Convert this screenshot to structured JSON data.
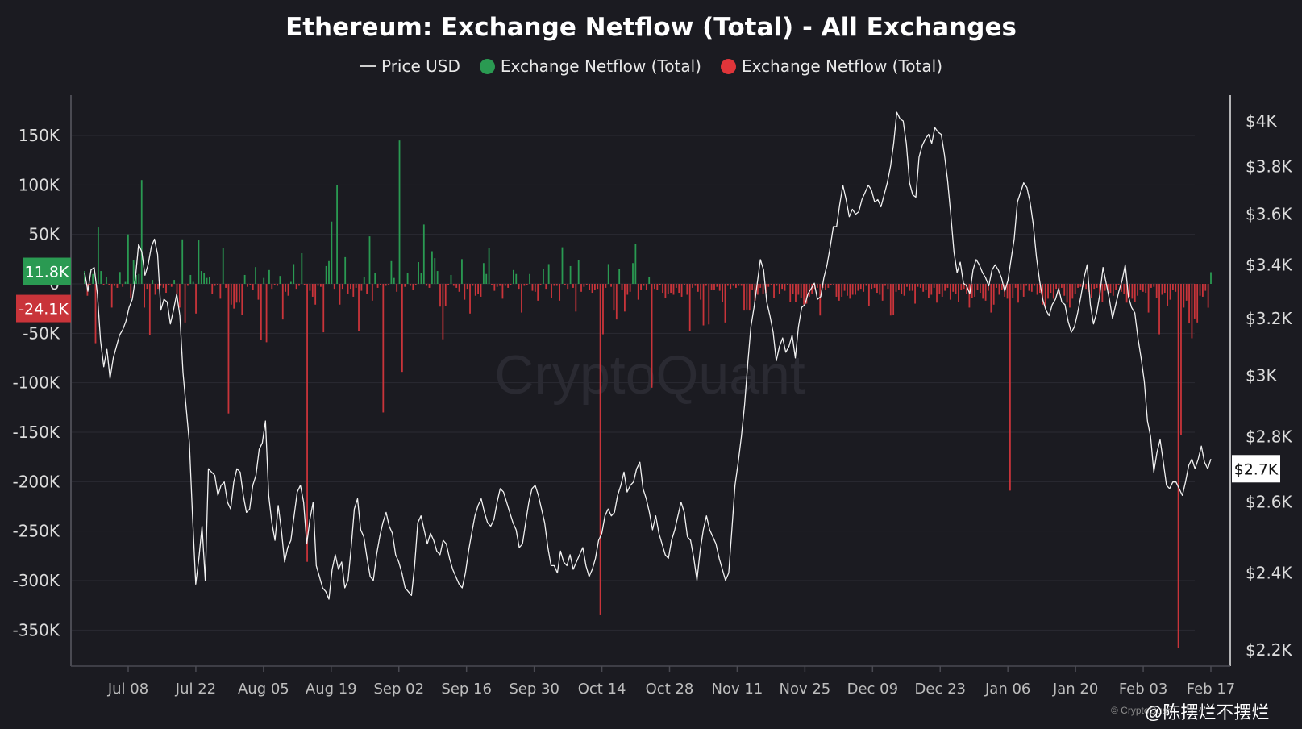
{
  "title": "Ethereum: Exchange Netflow (Total) - All Exchanges",
  "legend": [
    {
      "label": "Price USD",
      "type": "line",
      "color": "#e6e6e6"
    },
    {
      "label": "Exchange Netflow (Total)",
      "type": "dot",
      "color": "#2a9a52"
    },
    {
      "label": "Exchange Netflow (Total)",
      "type": "dot",
      "color": "#e0353a"
    }
  ],
  "watermark_center": "CryptoQuant",
  "credit": "© CryptoQuant",
  "footer_watermark": "@陈摆烂不摆烂",
  "colors": {
    "background": "#1b1b21",
    "inflow": "#2a9a52",
    "outflow": "#c9343a",
    "price": "#f2f2f2",
    "grid": "#2b2b33",
    "axis": "#4a4a52",
    "tick_text": "#dcdcdc"
  },
  "chart_data": {
    "type": "bar+line",
    "x_ticks": [
      "Jul 08",
      "Jul 22",
      "Aug 05",
      "Aug 19",
      "Sep 02",
      "Sep 16",
      "Sep 30",
      "Oct 14",
      "Oct 28",
      "Nov 11",
      "Nov 25",
      "Dec 09",
      "Dec 23",
      "Jan 06",
      "Jan 20",
      "Feb 03",
      "Feb 17"
    ],
    "x_range": [
      "Jun 27",
      "Feb 18"
    ],
    "y_left": {
      "ticks": [
        "150K",
        "100K",
        "50K",
        "0",
        "-50K",
        "-100K",
        "-150K",
        "-200K",
        "-250K",
        "-300K",
        "-350K"
      ],
      "range": [
        -392000,
        192000
      ]
    },
    "y_right": {
      "ticks": [
        "$4K",
        "$3.8K",
        "$3.6K",
        "$3.4K",
        "$3.2K",
        "$3K",
        "$2.8K",
        "$2.6K",
        "$2.4K",
        "$2.2K"
      ],
      "scale": "log",
      "range": [
        2170,
        4120
      ]
    },
    "current_labels": {
      "inflow": "11.8K",
      "outflow": "-24.1K",
      "price": "$2.7K"
    },
    "netflow_series": {
      "name": "Exchange Netflow (Total)",
      "start_date": "2024-06-29",
      "values": [
        13000,
        -12000,
        -1000,
        10000,
        -60000,
        57000,
        13000,
        -1000,
        7000,
        -1000,
        -24000,
        -2000,
        -4000,
        12000,
        -3000,
        2000,
        50000,
        -14000,
        24000,
        9000,
        10000,
        105000,
        -24000,
        -5000,
        -52000,
        4000,
        -11000,
        -5000,
        -2000,
        -4000,
        -9000,
        -1000,
        -3000,
        4000,
        -10000,
        -24000,
        45000,
        -39000,
        -2000,
        9000,
        2000,
        -30000,
        44000,
        13000,
        11000,
        6000,
        7000,
        -10000,
        -2000,
        -1000,
        -15000,
        36000,
        -4000,
        -131000,
        -21000,
        -25000,
        -19000,
        -19000,
        -31000,
        9000,
        -3000,
        -1000,
        -6000,
        17000,
        -16000,
        -57000,
        6000,
        -59000,
        14000,
        -5000,
        -1000,
        -2000,
        8000,
        -36000,
        -8000,
        -12000,
        2000,
        20000,
        -5000,
        -2000,
        31000,
        -1000,
        -281000,
        -7000,
        -13000,
        -21000,
        -2000,
        -3000,
        -49000,
        18000,
        23000,
        63000,
        -5000,
        100000,
        -21000,
        -5000,
        27000,
        -10000,
        -5000,
        -13000,
        -4000,
        -48000,
        -7000,
        7000,
        -10000,
        48000,
        -17000,
        11000,
        -4000,
        -1000,
        -130000,
        -2000,
        -1000,
        23000,
        6000,
        -8000,
        145000,
        -89000,
        -3000,
        11000,
        -2000,
        -6000,
        -1000,
        22000,
        11000,
        60000,
        -2000,
        -4000,
        33000,
        26000,
        13000,
        -23000,
        -56000,
        -22000,
        -1000,
        9000,
        -2000,
        -4000,
        -8000,
        25000,
        -16000,
        -5000,
        -30000,
        -2000,
        -12000,
        -10000,
        -13000,
        21000,
        10000,
        36000,
        -1000,
        -7000,
        -3000,
        -2000,
        -15000,
        -2000,
        -4000,
        -1000,
        14000,
        10000,
        -5000,
        -29000,
        -2000,
        -1000,
        10000,
        -7000,
        -8000,
        -17000,
        -1000,
        15000,
        -5000,
        20000,
        -14000,
        -2000,
        -2000,
        -17000,
        37000,
        -1000,
        -5000,
        18000,
        -4000,
        -28000,
        24000,
        -8000,
        -3000,
        -1000,
        -6000,
        -9000,
        -6000,
        -5000,
        -335000,
        -51000,
        -4000,
        20000,
        -3000,
        -27000,
        -36000,
        15000,
        -6000,
        -28000,
        -11000,
        -8000,
        21000,
        40000,
        -16000,
        -6000,
        -2000,
        -6000,
        7000,
        -105000,
        -5000,
        -6000,
        -1000,
        -9000,
        -14000,
        -10000,
        -9000,
        -11000,
        -4000,
        -9000,
        -13000,
        -1000,
        -11000,
        -48000,
        -4000,
        -2000,
        -8000,
        -16000,
        -42000,
        -2000,
        -41000,
        -6000,
        -6000,
        -3000,
        -7000,
        -18000,
        -39000,
        -2000,
        -5000,
        -2000,
        -4000,
        -2000,
        -2000,
        -27000,
        -26000,
        -27000,
        -6000,
        -17000,
        -11000,
        -4000,
        -10000,
        -9000,
        -3000,
        -1000,
        -14000,
        -2000,
        -10000,
        -5000,
        -7000,
        -1000,
        -18000,
        -10000,
        -18000,
        -11000,
        -14000,
        -21000,
        -20000,
        -13000,
        -10000,
        -5000,
        -4000,
        -32000,
        -4000,
        -6000,
        -4000,
        -1000,
        -1000,
        -13000,
        -17000,
        -13000,
        -7000,
        -12000,
        -15000,
        -11000,
        -11000,
        -7000,
        -5000,
        -8000,
        -2000,
        -22000,
        -5000,
        -4000,
        -9000,
        -11000,
        -17000,
        -2000,
        -5000,
        -32000,
        -31000,
        -8000,
        -6000,
        -10000,
        -12000,
        -3000,
        -7000,
        -7000,
        -20000,
        -3000,
        -4000,
        -8000,
        -6000,
        -14000,
        -11000,
        -4000,
        -19000,
        -10000,
        -13000,
        -7000,
        -4000,
        -16000,
        -8000,
        -10000,
        -18000,
        -6000,
        -5000,
        -10000,
        -24000,
        -14000,
        -13000,
        -6000,
        -9000,
        -15000,
        -17000,
        -7000,
        -29000,
        -21000,
        -4000,
        -11000,
        -6000,
        -13000,
        -15000,
        -209000,
        -14000,
        -4000,
        -19000,
        -6000,
        -13000,
        -2000,
        -7000,
        -8000,
        -2000,
        -11000,
        -9000,
        -21000,
        -24000,
        -15000,
        -9000,
        -15000,
        -5000,
        -11000,
        -4000,
        -12000,
        -19000,
        -24000,
        -15000,
        -10000,
        -4000,
        -3000,
        -3000,
        -5000,
        -8000,
        -14000,
        -5000,
        -4000,
        -10000,
        -18000,
        -7000,
        -6000,
        -9000,
        -12000,
        -6000,
        -1000,
        -8000,
        -10000,
        -19000,
        -13000,
        -15000,
        -18000,
        -12000,
        -6000,
        -8000,
        -9000,
        -29000,
        -4000,
        -3000,
        -14000,
        -51000,
        -11000,
        -9000,
        -22000,
        -16000,
        -6000,
        -8000,
        -368000,
        -153000,
        -24000,
        -17000,
        -40000,
        -55000,
        -35000,
        -39000,
        -12000,
        -13000,
        -7000,
        -24100,
        11800
      ]
    },
    "price_series": {
      "name": "Price USD",
      "start_date": "2024-06-29",
      "values": [
        3370,
        3300,
        3380,
        3390,
        3290,
        3120,
        3030,
        3090,
        2990,
        3060,
        3100,
        3140,
        3160,
        3190,
        3240,
        3270,
        3350,
        3480,
        3450,
        3360,
        3400,
        3470,
        3500,
        3440,
        3230,
        3270,
        3260,
        3180,
        3230,
        3290,
        3210,
        3010,
        2890,
        2780,
        2560,
        2370,
        2440,
        2530,
        2380,
        2700,
        2690,
        2680,
        2620,
        2650,
        2660,
        2600,
        2580,
        2660,
        2700,
        2690,
        2620,
        2570,
        2580,
        2650,
        2680,
        2760,
        2780,
        2850,
        2620,
        2540,
        2490,
        2590,
        2520,
        2430,
        2470,
        2490,
        2560,
        2630,
        2650,
        2600,
        2480,
        2550,
        2600,
        2420,
        2390,
        2360,
        2350,
        2330,
        2410,
        2450,
        2410,
        2430,
        2360,
        2380,
        2470,
        2580,
        2610,
        2520,
        2500,
        2440,
        2390,
        2380,
        2450,
        2500,
        2540,
        2570,
        2530,
        2510,
        2450,
        2430,
        2400,
        2360,
        2350,
        2340,
        2420,
        2540,
        2560,
        2520,
        2480,
        2510,
        2490,
        2460,
        2450,
        2490,
        2480,
        2440,
        2410,
        2390,
        2370,
        2360,
        2400,
        2460,
        2510,
        2560,
        2590,
        2610,
        2570,
        2540,
        2530,
        2550,
        2600,
        2640,
        2630,
        2600,
        2570,
        2540,
        2520,
        2470,
        2480,
        2540,
        2600,
        2640,
        2650,
        2620,
        2580,
        2540,
        2470,
        2420,
        2420,
        2400,
        2460,
        2430,
        2420,
        2450,
        2410,
        2430,
        2450,
        2470,
        2420,
        2390,
        2410,
        2440,
        2490,
        2510,
        2560,
        2580,
        2560,
        2570,
        2620,
        2650,
        2690,
        2630,
        2650,
        2660,
        2700,
        2720,
        2640,
        2610,
        2570,
        2520,
        2560,
        2510,
        2480,
        2450,
        2440,
        2490,
        2520,
        2560,
        2600,
        2570,
        2500,
        2490,
        2440,
        2380,
        2460,
        2520,
        2560,
        2520,
        2500,
        2480,
        2440,
        2410,
        2380,
        2400,
        2520,
        2650,
        2720,
        2800,
        2900,
        3040,
        3170,
        3240,
        3330,
        3420,
        3380,
        3260,
        3210,
        3150,
        3050,
        3100,
        3130,
        3080,
        3100,
        3140,
        3060,
        3170,
        3240,
        3250,
        3290,
        3310,
        3330,
        3270,
        3280,
        3350,
        3400,
        3470,
        3550,
        3550,
        3640,
        3720,
        3660,
        3590,
        3620,
        3600,
        3610,
        3660,
        3690,
        3720,
        3700,
        3650,
        3660,
        3630,
        3680,
        3730,
        3800,
        3900,
        4040,
        4010,
        4000,
        3900,
        3730,
        3680,
        3670,
        3840,
        3890,
        3920,
        3940,
        3900,
        3970,
        3950,
        3940,
        3850,
        3740,
        3600,
        3450,
        3370,
        3410,
        3330,
        3320,
        3290,
        3380,
        3420,
        3400,
        3370,
        3350,
        3320,
        3380,
        3400,
        3380,
        3350,
        3300,
        3340,
        3420,
        3500,
        3650,
        3690,
        3730,
        3710,
        3650,
        3560,
        3430,
        3340,
        3270,
        3230,
        3210,
        3250,
        3270,
        3310,
        3260,
        3250,
        3190,
        3150,
        3170,
        3220,
        3280,
        3350,
        3400,
        3250,
        3180,
        3220,
        3290,
        3390,
        3330,
        3270,
        3200,
        3250,
        3300,
        3340,
        3400,
        3280,
        3240,
        3220,
        3130,
        3060,
        2980,
        2850,
        2800,
        2690,
        2750,
        2790,
        2720,
        2650,
        2640,
        2660,
        2660,
        2640,
        2620,
        2660,
        2710,
        2730,
        2700,
        2730,
        2770,
        2720,
        2700,
        2730
      ]
    }
  }
}
